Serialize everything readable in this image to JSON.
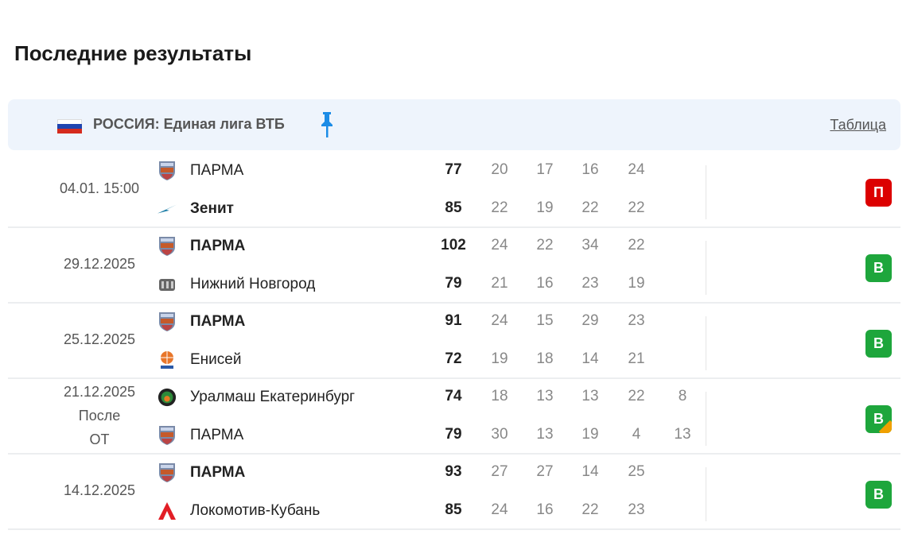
{
  "title": "Последние результаты",
  "league": {
    "name": "РОССИЯ: Единая лига ВТБ",
    "table_link": "Таблица",
    "flag": [
      "#ffffff",
      "#1f45b0",
      "#d52b1e"
    ],
    "pin_icon": "pin-icon",
    "pin_color": "#1c8ce6"
  },
  "colors": {
    "win": "#1ea63c",
    "loss": "#dc0000",
    "ot": "#f0a000"
  },
  "matches": [
    {
      "date": [
        "04.01. 15:00"
      ],
      "home": {
        "name": "ПАРМА",
        "bold": false,
        "logo": "parma"
      },
      "away": {
        "name": "Зенит",
        "bold": true,
        "logo": "zenit"
      },
      "home_score": "77",
      "away_score": "85",
      "home_periods": [
        "20",
        "17",
        "16",
        "24"
      ],
      "away_periods": [
        "22",
        "19",
        "22",
        "22"
      ],
      "result": "П",
      "result_type": "loss"
    },
    {
      "date": [
        "29.12.2025"
      ],
      "home": {
        "name": "ПАРМА",
        "bold": true,
        "logo": "parma"
      },
      "away": {
        "name": "Нижний Новгород",
        "bold": false,
        "logo": "nn"
      },
      "home_score": "102",
      "away_score": "79",
      "home_periods": [
        "24",
        "22",
        "34",
        "22"
      ],
      "away_periods": [
        "21",
        "16",
        "23",
        "19"
      ],
      "result": "В",
      "result_type": "win"
    },
    {
      "date": [
        "25.12.2025"
      ],
      "home": {
        "name": "ПАРМА",
        "bold": true,
        "logo": "parma"
      },
      "away": {
        "name": "Енисей",
        "bold": false,
        "logo": "enisey"
      },
      "home_score": "91",
      "away_score": "72",
      "home_periods": [
        "24",
        "15",
        "29",
        "23"
      ],
      "away_periods": [
        "19",
        "18",
        "14",
        "21"
      ],
      "result": "В",
      "result_type": "win"
    },
    {
      "date": [
        "21.12.2025",
        "После",
        "ОТ"
      ],
      "home": {
        "name": "Уралмаш Екатеринбург",
        "bold": false,
        "logo": "uralmash"
      },
      "away": {
        "name": "ПАРМА",
        "bold": false,
        "logo": "parma"
      },
      "home_score": "74",
      "away_score": "79",
      "home_periods": [
        "18",
        "13",
        "13",
        "22",
        "8"
      ],
      "away_periods": [
        "30",
        "13",
        "19",
        "4",
        "13"
      ],
      "result": "В",
      "result_type": "win-ot"
    },
    {
      "date": [
        "14.12.2025"
      ],
      "home": {
        "name": "ПАРМА",
        "bold": true,
        "logo": "parma"
      },
      "away": {
        "name": "Локомотив-Кубань",
        "bold": false,
        "logo": "lokomotiv"
      },
      "home_score": "93",
      "away_score": "85",
      "home_periods": [
        "27",
        "27",
        "14",
        "25"
      ],
      "away_periods": [
        "24",
        "16",
        "22",
        "23"
      ],
      "result": "В",
      "result_type": "win"
    }
  ]
}
